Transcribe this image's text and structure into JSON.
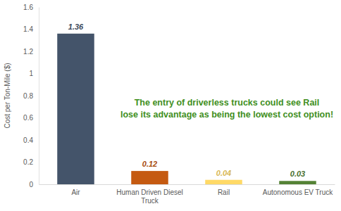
{
  "chart_data": {
    "type": "bar",
    "y_label": "Cost per Ton-Mile ($)",
    "categories": [
      "Air",
      "Human Driven Diesel Truck",
      "Rail",
      "Autonomous EV Truck"
    ],
    "values": [
      1.36,
      0.12,
      0.04,
      0.03
    ],
    "colors": [
      "#44546a",
      "#c55a11",
      "#ffd966",
      "#548235"
    ],
    "ylim": [
      0,
      1.6
    ],
    "yticks": [
      0,
      0.2,
      0.4,
      0.6,
      0.8,
      1,
      1.2,
      1.4,
      1.6
    ],
    "grid": false,
    "data_labels": true,
    "annotation": [
      "The entry of driverless trucks could see Rail",
      "lose its advantage as being the lowest cost option!"
    ]
  }
}
